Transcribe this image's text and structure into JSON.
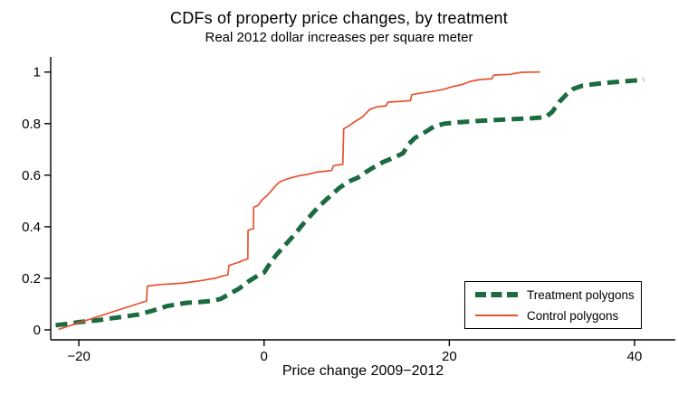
{
  "header": {
    "title": "CDFs of property price changes, by treatment",
    "subtitle": "Real 2012 dollar increases per square meter"
  },
  "colors": {
    "treatment": "#1c6b40",
    "control": "#e8512e",
    "axis": "#000000",
    "background": "#ffffff",
    "legend_border": "#000000"
  },
  "chart_data": {
    "type": "line",
    "title": "CDFs of property price changes, by treatment",
    "subtitle": "Real 2012 dollar increases per square meter",
    "xlabel": "Price change 2009−2012",
    "ylabel": "",
    "xlim": [
      -23.04,
      44.4
    ],
    "ylim": [
      -0.0386,
      1.0586
    ],
    "grid": false,
    "legend_position": "inside-bottom-right",
    "xticks": [
      -20,
      0,
      20,
      40
    ],
    "xtick_labels": [
      "−20",
      "0",
      "20",
      "40"
    ],
    "yticks": [
      0,
      0.2,
      0.4,
      0.6,
      0.8,
      1
    ],
    "ytick_labels": [
      "0",
      "0.2",
      "0.4",
      "0.6",
      "0.8",
      "1"
    ],
    "series": [
      {
        "name": "Treatment polygons",
        "color": "#1c6b40",
        "style": "dashed",
        "stroke_width": 5,
        "dash": "13 7",
        "points": [
          [
            -22.5,
            0.018
          ],
          [
            -21,
            0.024
          ],
          [
            -20,
            0.03
          ],
          [
            -18,
            0.037
          ],
          [
            -16.5,
            0.045
          ],
          [
            -15,
            0.052
          ],
          [
            -13.5,
            0.06
          ],
          [
            -12,
            0.075
          ],
          [
            -10.5,
            0.092
          ],
          [
            -9.3,
            0.1
          ],
          [
            -8.3,
            0.105
          ],
          [
            -7,
            0.108
          ],
          [
            -5.7,
            0.112
          ],
          [
            -4.7,
            0.12
          ],
          [
            -3.7,
            0.14
          ],
          [
            -2.7,
            0.16
          ],
          [
            -1.6,
            0.19
          ],
          [
            -0.7,
            0.21
          ],
          [
            0,
            0.222
          ],
          [
            0.5,
            0.25
          ],
          [
            1.3,
            0.29
          ],
          [
            2.3,
            0.33
          ],
          [
            3.3,
            0.37
          ],
          [
            4.2,
            0.41
          ],
          [
            5.2,
            0.45
          ],
          [
            5.7,
            0.47
          ],
          [
            6.7,
            0.505
          ],
          [
            7.2,
            0.52
          ],
          [
            8.1,
            0.55
          ],
          [
            9.1,
            0.575
          ],
          [
            10.1,
            0.59
          ],
          [
            10.9,
            0.61
          ],
          [
            11.8,
            0.63
          ],
          [
            12.8,
            0.65
          ],
          [
            14,
            0.668
          ],
          [
            15,
            0.685
          ],
          [
            15.6,
            0.72
          ],
          [
            16.3,
            0.745
          ],
          [
            17.3,
            0.765
          ],
          [
            18.4,
            0.79
          ],
          [
            19.5,
            0.8
          ],
          [
            21,
            0.805
          ],
          [
            23,
            0.81
          ],
          [
            25,
            0.814
          ],
          [
            27.2,
            0.818
          ],
          [
            29,
            0.821
          ],
          [
            30.4,
            0.825
          ],
          [
            31.1,
            0.845
          ],
          [
            31.9,
            0.885
          ],
          [
            32.7,
            0.915
          ],
          [
            33.4,
            0.935
          ],
          [
            34.4,
            0.947
          ],
          [
            36,
            0.955
          ],
          [
            37.5,
            0.96
          ],
          [
            38.9,
            0.964
          ],
          [
            40,
            0.967
          ],
          [
            41,
            0.972
          ]
        ]
      },
      {
        "name": "Control polygons",
        "color": "#e8512e",
        "style": "solid",
        "stroke_width": 1.7,
        "dash": "",
        "points": [
          [
            -22.2,
            0.002
          ],
          [
            -12.7,
            0.112
          ],
          [
            -12.6,
            0.17
          ],
          [
            -11.2,
            0.176
          ],
          [
            -8.9,
            0.181
          ],
          [
            -7,
            0.19
          ],
          [
            -5.3,
            0.2
          ],
          [
            -4.4,
            0.21
          ],
          [
            -3.9,
            0.213
          ],
          [
            -3.8,
            0.25
          ],
          [
            -3.3,
            0.256
          ],
          [
            -2.6,
            0.264
          ],
          [
            -2.1,
            0.272
          ],
          [
            -1.75,
            0.275
          ],
          [
            -1.73,
            0.385
          ],
          [
            -1.45,
            0.39
          ],
          [
            -1.15,
            0.392
          ],
          [
            -1.13,
            0.475
          ],
          [
            -0.65,
            0.483
          ],
          [
            -0.2,
            0.505
          ],
          [
            0.3,
            0.52
          ],
          [
            0.8,
            0.54
          ],
          [
            1.2,
            0.557
          ],
          [
            1.6,
            0.572
          ],
          [
            2.1,
            0.58
          ],
          [
            2.9,
            0.59
          ],
          [
            3.8,
            0.598
          ],
          [
            4.7,
            0.603
          ],
          [
            5.7,
            0.612
          ],
          [
            7.3,
            0.618
          ],
          [
            7.5,
            0.637
          ],
          [
            8.5,
            0.642
          ],
          [
            8.6,
            0.78
          ],
          [
            9.1,
            0.79
          ],
          [
            9.9,
            0.81
          ],
          [
            10.6,
            0.825
          ],
          [
            11.4,
            0.855
          ],
          [
            12.2,
            0.865
          ],
          [
            13.2,
            0.869
          ],
          [
            13.35,
            0.883
          ],
          [
            15.8,
            0.889
          ],
          [
            15.95,
            0.912
          ],
          [
            16.5,
            0.916
          ],
          [
            18.4,
            0.926
          ],
          [
            19.4,
            0.933
          ],
          [
            20.4,
            0.944
          ],
          [
            21.3,
            0.951
          ],
          [
            22.3,
            0.964
          ],
          [
            23.3,
            0.971
          ],
          [
            24.6,
            0.974
          ],
          [
            24.8,
            0.988
          ],
          [
            26.5,
            0.991
          ],
          [
            27.8,
            0.999
          ],
          [
            29.8,
            1.0
          ]
        ]
      }
    ]
  },
  "legend": {
    "items": [
      {
        "label": "Treatment polygons"
      },
      {
        "label": "Control polygons"
      }
    ]
  }
}
